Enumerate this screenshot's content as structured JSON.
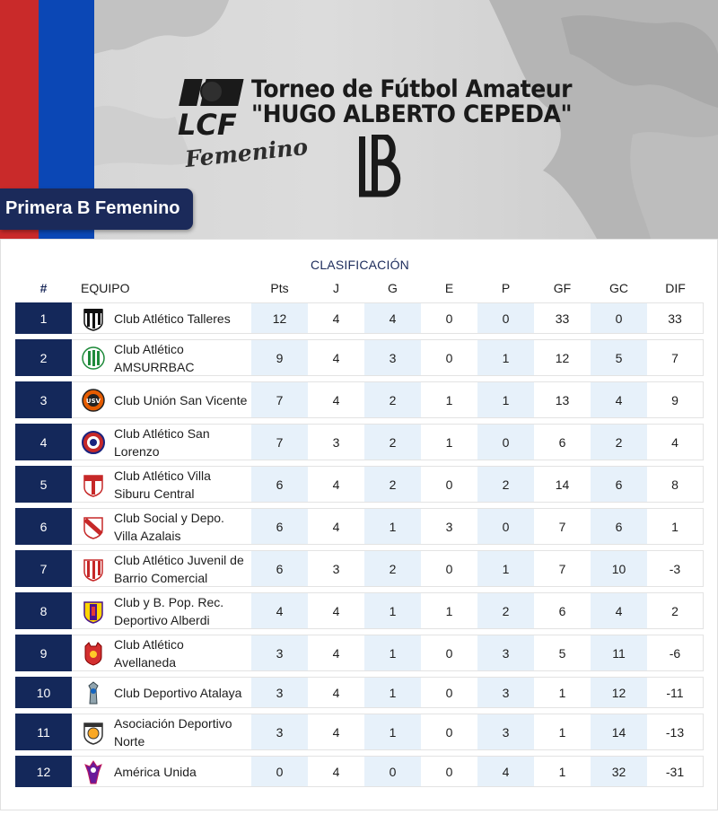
{
  "banner": {
    "logo_text": "LCF",
    "script_word": "Femenino",
    "title_line1": "Torneo de Fútbol Amateur",
    "title_line2": "\"HUGO ALBERTO CEPEDA\"",
    "division": "Primera B Femenino",
    "colors": {
      "red": "#c92a2a",
      "blue": "#0b47b5",
      "navy": "#1b2a5a"
    }
  },
  "table": {
    "section_title": "CLASIFICACIÓN",
    "headers": {
      "pos": "#",
      "team": "EQUIPO",
      "pts": "Pts",
      "j": "J",
      "g": "G",
      "e": "E",
      "p": "P",
      "gf": "GF",
      "gc": "GC",
      "dif": "DIF"
    },
    "rows": [
      {
        "pos": "1",
        "team": "Club Atlético Talleres",
        "crest": "striped-black-white-crest",
        "pts": "12",
        "j": "4",
        "g": "4",
        "e": "0",
        "p": "0",
        "gf": "33",
        "gc": "0",
        "dif": "33"
      },
      {
        "pos": "2",
        "team": "Club Atlético AMSURRBAC",
        "crest": "green-striped-crest",
        "pts": "9",
        "j": "4",
        "g": "3",
        "e": "0",
        "p": "1",
        "gf": "12",
        "gc": "5",
        "dif": "7"
      },
      {
        "pos": "3",
        "team": "Club Unión San Vicente",
        "crest": "orange-usv-crest",
        "pts": "7",
        "j": "4",
        "g": "2",
        "e": "1",
        "p": "1",
        "gf": "13",
        "gc": "4",
        "dif": "9"
      },
      {
        "pos": "4",
        "team": "Club Atlético San Lorenzo",
        "crest": "round-red-blue-crest",
        "pts": "7",
        "j": "3",
        "g": "2",
        "e": "1",
        "p": "0",
        "gf": "6",
        "gc": "2",
        "dif": "4"
      },
      {
        "pos": "5",
        "team": "Club Atlético Villa Siburu Central",
        "crest": "red-white-shield-crest",
        "pts": "6",
        "j": "4",
        "g": "2",
        "e": "0",
        "p": "2",
        "gf": "14",
        "gc": "6",
        "dif": "8"
      },
      {
        "pos": "6",
        "team": "Club Social y Depo. Villa Azalais",
        "crest": "red-sash-crest",
        "pts": "6",
        "j": "4",
        "g": "1",
        "e": "3",
        "p": "0",
        "gf": "7",
        "gc": "6",
        "dif": "1"
      },
      {
        "pos": "7",
        "team": "Club Atlético Juvenil de Barrio Comercial",
        "crest": "red-striped-crest",
        "pts": "6",
        "j": "3",
        "g": "2",
        "e": "0",
        "p": "1",
        "gf": "7",
        "gc": "10",
        "dif": "-3"
      },
      {
        "pos": "8",
        "team": "Club y B. Pop. Rec. Deportivo Alberdi",
        "crest": "yellow-purple-crest",
        "pts": "4",
        "j": "4",
        "g": "1",
        "e": "1",
        "p": "2",
        "gf": "6",
        "gc": "4",
        "dif": "2"
      },
      {
        "pos": "9",
        "team": "Club Atlético Avellaneda",
        "crest": "red-devil-crest",
        "pts": "3",
        "j": "4",
        "g": "1",
        "e": "0",
        "p": "3",
        "gf": "5",
        "gc": "11",
        "dif": "-6"
      },
      {
        "pos": "10",
        "team": "Club Deportivo Atalaya",
        "crest": "blue-tower-crest",
        "pts": "3",
        "j": "4",
        "g": "1",
        "e": "0",
        "p": "3",
        "gf": "1",
        "gc": "12",
        "dif": "-11"
      },
      {
        "pos": "11",
        "team": "Asociación Deportivo Norte",
        "crest": "white-gold-crest",
        "pts": "3",
        "j": "4",
        "g": "1",
        "e": "0",
        "p": "3",
        "gf": "1",
        "gc": "14",
        "dif": "-13"
      },
      {
        "pos": "12",
        "team": "América Unida",
        "crest": "purple-figure-crest",
        "pts": "0",
        "j": "4",
        "g": "0",
        "e": "0",
        "p": "4",
        "gf": "1",
        "gc": "32",
        "dif": "-31"
      }
    ]
  }
}
